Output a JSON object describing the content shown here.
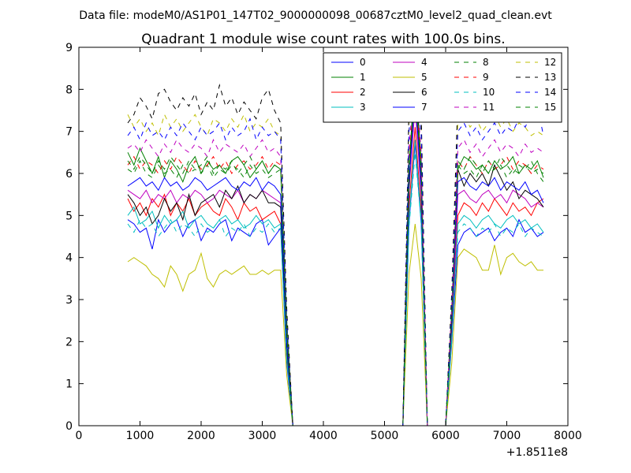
{
  "suptitle": "Data file: modeM0/AS1P01_147T02_9000000098_00687cztM0_level2_quad_clean.evt",
  "chart_data": {
    "type": "line",
    "title": "Quadrant 1 module wise count rates with 100.0s bins.",
    "xlabel": "",
    "ylabel": "",
    "x_offset_label": "+1.8511e8",
    "xlim": [
      0,
      8000
    ],
    "ylim": [
      0,
      9
    ],
    "xticks": [
      0,
      1000,
      2000,
      3000,
      4000,
      5000,
      6000,
      7000,
      8000
    ],
    "xtick_labels": [
      "0",
      "1000",
      "2000",
      "3000",
      "4000",
      "5000",
      "6000",
      "7000",
      "8000"
    ],
    "yticks": [
      0,
      1,
      2,
      3,
      4,
      5,
      6,
      7,
      8,
      9
    ],
    "ytick_labels": [
      "0",
      "1",
      "2",
      "3",
      "4",
      "5",
      "6",
      "7",
      "8",
      "9"
    ],
    "grid": false,
    "legend_position": "top-right",
    "legend_columns": 4,
    "x": [
      800,
      900,
      1000,
      1100,
      1200,
      1300,
      1400,
      1500,
      1600,
      1700,
      1800,
      1900,
      2000,
      2100,
      2200,
      2300,
      2400,
      2500,
      2600,
      2700,
      2800,
      2900,
      3000,
      3100,
      3200,
      3300,
      3400,
      3500,
      3600,
      3700,
      3800,
      3900,
      4000,
      4100,
      4200,
      4300,
      4400,
      4500,
      4600,
      4700,
      4800,
      4900,
      5000,
      5100,
      5200,
      5300,
      5400,
      5500,
      5600,
      5700,
      5800,
      5900,
      6000,
      6100,
      6200,
      6300,
      6400,
      6500,
      6600,
      6700,
      6800,
      6900,
      7000,
      7100,
      7200,
      7300,
      7400,
      7500,
      7600
    ],
    "series": [
      {
        "name": "0",
        "color": "#0000ff",
        "dash": "solid",
        "values": [
          4.9,
          4.8,
          4.6,
          4.7,
          4.2,
          4.9,
          4.6,
          4.8,
          4.9,
          4.5,
          4.8,
          4.9,
          4.4,
          4.7,
          4.6,
          4.8,
          4.9,
          4.4,
          4.7,
          4.6,
          4.5,
          4.8,
          4.9,
          4.3,
          4.5,
          4.7,
          1.5,
          0,
          0,
          0,
          0,
          0,
          0,
          0,
          0,
          0,
          0,
          0,
          0,
          0,
          0,
          0,
          0,
          0,
          0,
          0,
          4.8,
          6.7,
          4.8,
          0,
          0,
          0,
          0,
          2.0,
          4.3,
          4.6,
          4.7,
          4.5,
          4.6,
          4.7,
          4.4,
          4.6,
          4.7,
          4.5,
          4.9,
          4.6,
          4.7,
          4.5,
          4.6
        ]
      },
      {
        "name": "1",
        "color": "#008000",
        "dash": "solid",
        "values": [
          6.5,
          6.2,
          6.6,
          6.3,
          6.0,
          6.4,
          5.9,
          6.3,
          6.1,
          5.8,
          6.2,
          6.4,
          6.0,
          6.3,
          6.1,
          6.2,
          6.0,
          6.3,
          6.4,
          6.2,
          5.9,
          6.1,
          6.3,
          6.0,
          6.2,
          6.1,
          2.5,
          0,
          0,
          0,
          0,
          0,
          0,
          0,
          0,
          0,
          0,
          0,
          0,
          0,
          0,
          0,
          0,
          0,
          0,
          0,
          6.2,
          8.3,
          6.3,
          0,
          0,
          0,
          0,
          2.8,
          6.1,
          6.4,
          6.3,
          6.1,
          6.2,
          6.0,
          6.3,
          6.1,
          6.2,
          6.4,
          6.0,
          6.2,
          6.1,
          6.3,
          5.9
        ]
      },
      {
        "name": "2",
        "color": "#ff0000",
        "dash": "solid",
        "values": [
          5.4,
          5.1,
          5.3,
          5.0,
          5.4,
          5.2,
          5.5,
          5.0,
          5.3,
          5.1,
          5.4,
          5.0,
          5.2,
          5.3,
          5.1,
          5.0,
          5.4,
          5.2,
          4.9,
          5.3,
          5.1,
          5.2,
          4.9,
          5.0,
          5.1,
          4.8,
          1.8,
          0,
          0,
          0,
          0,
          0,
          0,
          0,
          0,
          0,
          0,
          0,
          0,
          0,
          0,
          0,
          0,
          0,
          0,
          0,
          5.2,
          7.1,
          5.1,
          0,
          0,
          0,
          0,
          2.3,
          5.0,
          5.3,
          5.2,
          5.0,
          5.3,
          5.1,
          5.4,
          5.2,
          5.0,
          5.3,
          5.1,
          5.2,
          5.0,
          5.3,
          5.4
        ]
      },
      {
        "name": "3",
        "color": "#00bfbf",
        "dash": "solid",
        "values": [
          5.0,
          5.2,
          4.8,
          4.9,
          5.1,
          4.7,
          5.0,
          4.8,
          4.9,
          5.1,
          4.7,
          4.9,
          5.0,
          4.8,
          4.7,
          4.9,
          5.0,
          4.8,
          4.9,
          4.7,
          4.8,
          5.0,
          4.8,
          4.9,
          4.7,
          4.8,
          1.6,
          0,
          0,
          0,
          0,
          0,
          0,
          0,
          0,
          0,
          0,
          0,
          0,
          0,
          0,
          0,
          0,
          0,
          0,
          0,
          4.9,
          6.8,
          4.9,
          0,
          0,
          0,
          0,
          2.1,
          4.8,
          5.0,
          4.9,
          4.7,
          4.9,
          5.0,
          4.8,
          4.7,
          4.9,
          5.0,
          4.8,
          4.9,
          4.7,
          4.8,
          4.6
        ]
      },
      {
        "name": "4",
        "color": "#bf00bf",
        "dash": "solid",
        "values": [
          5.6,
          5.5,
          5.4,
          5.6,
          5.3,
          5.5,
          5.4,
          5.6,
          5.3,
          5.5,
          5.4,
          5.6,
          5.5,
          5.3,
          5.4,
          5.6,
          5.5,
          5.4,
          5.6,
          5.3,
          5.5,
          5.4,
          5.6,
          5.5,
          5.4,
          5.3,
          1.9,
          0,
          0,
          0,
          0,
          0,
          0,
          0,
          0,
          0,
          0,
          0,
          0,
          0,
          0,
          0,
          0,
          0,
          0,
          0,
          5.6,
          7.6,
          5.5,
          0,
          0,
          0,
          0,
          2.4,
          5.5,
          5.6,
          5.4,
          5.3,
          5.5,
          5.6,
          5.4,
          5.5,
          5.3,
          5.6,
          5.5,
          5.4,
          5.2,
          5.3,
          5.2
        ]
      },
      {
        "name": "5",
        "color": "#bfbf00",
        "dash": "solid",
        "values": [
          3.9,
          4.0,
          3.9,
          3.8,
          3.6,
          3.5,
          3.3,
          3.8,
          3.6,
          3.2,
          3.6,
          3.7,
          4.1,
          3.5,
          3.3,
          3.6,
          3.7,
          3.6,
          3.7,
          3.8,
          3.6,
          3.6,
          3.7,
          3.6,
          3.7,
          3.7,
          1.2,
          0,
          0,
          0,
          0,
          0,
          0,
          0,
          0,
          0,
          0,
          0,
          0,
          0,
          0,
          0,
          0,
          0,
          0,
          0,
          3.6,
          4.8,
          3.5,
          0,
          0,
          0,
          0,
          1.5,
          4.0,
          4.2,
          4.1,
          4.0,
          3.7,
          3.7,
          4.3,
          3.6,
          4.0,
          4.1,
          3.9,
          3.8,
          3.9,
          3.7,
          3.7
        ]
      },
      {
        "name": "6",
        "color": "#000000",
        "dash": "solid",
        "values": [
          5.5,
          5.3,
          5.0,
          5.2,
          4.8,
          5.0,
          5.4,
          5.1,
          5.3,
          4.9,
          5.5,
          5.0,
          5.3,
          5.4,
          5.5,
          5.2,
          5.6,
          5.4,
          5.7,
          5.3,
          5.5,
          5.4,
          5.6,
          5.3,
          5.3,
          5.2,
          1.9,
          0,
          0,
          0,
          0,
          0,
          0,
          0,
          0,
          0,
          0,
          0,
          0,
          0,
          0,
          0,
          0,
          0,
          0,
          0,
          5.6,
          8.7,
          5.6,
          0,
          0,
          0,
          0,
          2.5,
          6.1,
          5.7,
          6.0,
          5.8,
          6.0,
          5.7,
          6.2,
          5.9,
          5.6,
          5.8,
          5.4,
          5.6,
          5.5,
          5.4,
          5.2
        ]
      },
      {
        "name": "7",
        "color": "#0000ff",
        "dash": "solid",
        "values": [
          5.7,
          5.8,
          5.9,
          5.7,
          5.8,
          5.6,
          5.9,
          5.7,
          5.8,
          5.6,
          5.7,
          5.9,
          5.8,
          5.6,
          5.7,
          5.8,
          5.9,
          5.7,
          5.6,
          5.8,
          5.7,
          5.9,
          5.6,
          5.8,
          5.7,
          5.5,
          2.0,
          0,
          0,
          0,
          0,
          0,
          0,
          0,
          0,
          0,
          0,
          0,
          0,
          0,
          0,
          0,
          0,
          0,
          0,
          0,
          5.8,
          7.9,
          5.7,
          0,
          0,
          0,
          0,
          2.6,
          5.8,
          5.9,
          5.7,
          5.6,
          5.8,
          5.7,
          5.9,
          5.6,
          5.8,
          5.7,
          5.6,
          5.8,
          5.5,
          5.6,
          5.3
        ]
      },
      {
        "name": "8",
        "color": "#008000",
        "dash": "dashed",
        "values": [
          6.1,
          6.0,
          6.3,
          6.0,
          5.9,
          6.2,
          6.0,
          6.1,
          5.9,
          6.2,
          6.0,
          6.1,
          6.0,
          6.2,
          5.9,
          6.1,
          6.0,
          6.2,
          6.1,
          5.9,
          6.2,
          6.0,
          6.1,
          5.9,
          6.0,
          6.1,
          2.2,
          0,
          0,
          0,
          0,
          0,
          0,
          0,
          0,
          0,
          0,
          0,
          0,
          0,
          0,
          0,
          0,
          0,
          0,
          0,
          6.1,
          8.1,
          6.0,
          0,
          0,
          0,
          0,
          2.7,
          6.2,
          6.0,
          6.1,
          5.9,
          6.2,
          6.0,
          6.1,
          6.2,
          5.9,
          6.1,
          6.0,
          6.2,
          6.0,
          6.1,
          6.0
        ]
      },
      {
        "name": "9",
        "color": "#ff0000",
        "dash": "dashed",
        "values": [
          6.2,
          6.4,
          6.1,
          6.3,
          6.2,
          6.0,
          6.3,
          6.1,
          6.4,
          6.2,
          6.0,
          6.3,
          6.1,
          6.2,
          6.4,
          6.1,
          6.3,
          6.0,
          6.2,
          6.3,
          6.1,
          6.2,
          6.4,
          6.1,
          6.3,
          6.2,
          2.3,
          0,
          0,
          0,
          0,
          0,
          0,
          0,
          0,
          0,
          0,
          0,
          0,
          0,
          0,
          0,
          0,
          0,
          0,
          0,
          6.3,
          8.2,
          6.2,
          0,
          0,
          0,
          0,
          2.8,
          6.3,
          6.1,
          6.4,
          6.2,
          6.0,
          6.3,
          6.1,
          6.2,
          6.4,
          6.1,
          6.3,
          6.2,
          6.0,
          6.2,
          6.1
        ]
      },
      {
        "name": "10",
        "color": "#00bfbf",
        "dash": "dashed",
        "values": [
          4.8,
          4.6,
          4.9,
          4.7,
          4.8,
          4.5,
          4.7,
          4.9,
          4.6,
          4.8,
          4.7,
          4.5,
          4.8,
          4.6,
          4.7,
          4.9,
          4.5,
          4.7,
          4.6,
          4.8,
          4.5,
          4.7,
          4.6,
          4.8,
          4.6,
          4.7,
          1.6,
          0,
          0,
          0,
          0,
          0,
          0,
          0,
          0,
          0,
          0,
          0,
          0,
          0,
          0,
          0,
          0,
          0,
          0,
          0,
          4.7,
          6.5,
          4.8,
          0,
          0,
          0,
          0,
          2.0,
          4.6,
          4.8,
          4.7,
          4.5,
          4.7,
          4.6,
          4.8,
          4.5,
          4.7,
          4.6,
          4.8,
          4.5,
          4.7,
          4.6,
          4.5
        ]
      },
      {
        "name": "11",
        "color": "#bf00bf",
        "dash": "dashed",
        "values": [
          6.6,
          6.7,
          6.5,
          6.8,
          6.6,
          6.4,
          6.7,
          6.5,
          6.8,
          6.6,
          6.5,
          6.7,
          6.6,
          6.4,
          6.8,
          6.5,
          6.7,
          6.6,
          6.5,
          6.7,
          6.4,
          6.6,
          6.8,
          6.5,
          6.6,
          6.4,
          2.4,
          0,
          0,
          0,
          0,
          0,
          0,
          0,
          0,
          0,
          0,
          0,
          0,
          0,
          0,
          0,
          0,
          0,
          0,
          0,
          6.6,
          8.4,
          6.5,
          0,
          0,
          0,
          0,
          2.9,
          6.6,
          6.8,
          6.5,
          6.7,
          6.4,
          6.6,
          6.8,
          6.5,
          6.7,
          6.6,
          6.4,
          6.7,
          6.5,
          6.6,
          6.5
        ]
      },
      {
        "name": "12",
        "color": "#bfbf00",
        "dash": "dashed",
        "values": [
          7.4,
          7.1,
          7.3,
          7.0,
          7.2,
          6.9,
          7.4,
          7.1,
          7.3,
          7.0,
          7.2,
          7.4,
          7.1,
          6.9,
          7.3,
          7.2,
          7.0,
          7.3,
          7.1,
          7.4,
          7.0,
          7.2,
          7.1,
          7.3,
          7.0,
          6.9,
          2.6,
          0,
          0,
          0,
          0,
          0,
          0,
          0,
          0,
          0,
          0,
          0,
          0,
          0,
          0,
          0,
          0,
          0,
          0,
          0,
          7.2,
          8.5,
          7.1,
          0,
          0,
          0,
          0,
          3.0,
          7.2,
          7.4,
          7.1,
          7.3,
          7.0,
          7.2,
          7.4,
          7.1,
          7.3,
          7.0,
          7.2,
          7.1,
          6.9,
          7.0,
          6.9
        ]
      },
      {
        "name": "13",
        "color": "#000000",
        "dash": "dashed",
        "values": [
          7.2,
          7.4,
          7.8,
          7.6,
          7.3,
          7.9,
          8.0,
          7.7,
          7.5,
          7.8,
          7.6,
          7.9,
          7.4,
          7.7,
          7.5,
          8.1,
          7.6,
          7.8,
          7.4,
          7.7,
          7.5,
          7.3,
          7.8,
          8.0,
          7.5,
          7.2,
          2.8,
          0,
          0,
          0,
          0,
          0,
          0,
          0,
          0,
          0,
          0,
          0,
          0,
          0,
          0,
          0,
          0,
          0,
          0,
          0,
          7.6,
          8.6,
          7.5,
          0,
          0,
          0,
          0,
          3.2,
          7.8,
          8.0,
          7.7,
          8.1,
          7.9,
          8.1,
          8.0,
          8.1,
          8.2,
          8.3,
          8.1,
          8.2,
          8.3,
          8.2,
          8.1
        ]
      },
      {
        "name": "14",
        "color": "#0000ff",
        "dash": "dashed",
        "values": [
          6.9,
          7.1,
          6.8,
          7.2,
          6.9,
          7.0,
          6.8,
          7.1,
          6.9,
          7.2,
          7.0,
          6.8,
          7.1,
          6.9,
          7.0,
          7.2,
          6.8,
          7.1,
          6.9,
          7.0,
          7.3,
          6.8,
          7.1,
          6.9,
          7.0,
          6.8,
          2.5,
          0,
          0,
          0,
          0,
          0,
          0,
          0,
          0,
          0,
          0,
          0,
          0,
          0,
          0,
          0,
          0,
          0,
          0,
          0,
          7.0,
          8.3,
          6.9,
          0,
          0,
          0,
          0,
          2.9,
          7.0,
          7.2,
          6.9,
          7.1,
          6.8,
          7.0,
          7.2,
          6.9,
          7.1,
          7.0,
          7.3,
          7.1,
          7.4,
          7.6,
          6.9
        ]
      },
      {
        "name": "15",
        "color": "#008000",
        "dash": "dashed",
        "values": [
          6.3,
          6.1,
          6.4,
          6.2,
          6.0,
          6.3,
          6.1,
          6.4,
          6.2,
          6.0,
          6.3,
          6.1,
          6.2,
          6.4,
          6.0,
          6.2,
          6.1,
          6.3,
          6.0,
          6.2,
          6.4,
          6.1,
          6.3,
          6.0,
          6.2,
          6.1,
          2.3,
          0,
          0,
          0,
          0,
          0,
          0,
          0,
          0,
          0,
          0,
          0,
          0,
          0,
          0,
          0,
          0,
          0,
          0,
          0,
          6.2,
          8.0,
          6.1,
          0,
          0,
          0,
          0,
          2.7,
          6.3,
          6.1,
          6.4,
          6.2,
          6.0,
          6.3,
          6.1,
          6.4,
          6.2,
          6.0,
          6.2,
          6.1,
          6.3,
          6.0,
          5.8
        ]
      }
    ]
  }
}
